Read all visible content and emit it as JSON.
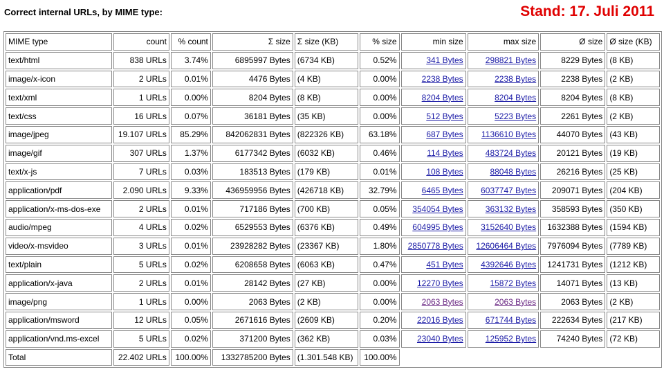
{
  "header": {
    "title": "Correct internal URLs, by MIME type:",
    "stand": "Stand: 17. Juli 2011"
  },
  "table": {
    "header": [
      "MIME type",
      "count",
      "% count",
      "Σ size",
      "Σ size (KB)",
      "% size",
      "min size",
      "max size",
      "Ø size",
      "Ø size (KB)"
    ],
    "rows": [
      [
        "text/html",
        "838 URLs",
        "3.74%",
        "6895997 Bytes",
        "(6734 KB)",
        "0.52%",
        "341 Bytes",
        "298821 Bytes",
        "8229 Bytes",
        "(8 KB)"
      ],
      [
        "image/x-icon",
        "2 URLs",
        "0.01%",
        "4476 Bytes",
        "(4 KB)",
        "0.00%",
        "2238 Bytes",
        "2238 Bytes",
        "2238 Bytes",
        "(2 KB)"
      ],
      [
        "text/xml",
        "1 URLs",
        "0.00%",
        "8204 Bytes",
        "(8 KB)",
        "0.00%",
        "8204 Bytes",
        "8204 Bytes",
        "8204 Bytes",
        "(8 KB)"
      ],
      [
        "text/css",
        "16 URLs",
        "0.07%",
        "36181 Bytes",
        "(35 KB)",
        "0.00%",
        "512 Bytes",
        "5223 Bytes",
        "2261 Bytes",
        "(2 KB)"
      ],
      [
        "image/jpeg",
        "19.107 URLs",
        "85.29%",
        "842062831 Bytes",
        "(822326 KB)",
        "63.18%",
        "687 Bytes",
        "1136610 Bytes",
        "44070 Bytes",
        "(43 KB)"
      ],
      [
        "image/gif",
        "307 URLs",
        "1.37%",
        "6177342 Bytes",
        "(6032 KB)",
        "0.46%",
        "114 Bytes",
        "483724 Bytes",
        "20121 Bytes",
        "(19 KB)"
      ],
      [
        "text/x-js",
        "7 URLs",
        "0.03%",
        "183513 Bytes",
        "(179 KB)",
        "0.01%",
        "108 Bytes",
        "88048 Bytes",
        "26216 Bytes",
        "(25 KB)"
      ],
      [
        "application/pdf",
        "2.090 URLs",
        "9.33%",
        "436959956 Bytes",
        "(426718 KB)",
        "32.79%",
        "6465 Bytes",
        "6037747 Bytes",
        "209071 Bytes",
        "(204 KB)"
      ],
      [
        "application/x-ms-dos-exe",
        "2 URLs",
        "0.01%",
        "717186 Bytes",
        "(700 KB)",
        "0.05%",
        "354054 Bytes",
        "363132 Bytes",
        "358593 Bytes",
        "(350 KB)"
      ],
      [
        "audio/mpeg",
        "4 URLs",
        "0.02%",
        "6529553 Bytes",
        "(6376 KB)",
        "0.49%",
        "604995 Bytes",
        "3152640 Bytes",
        "1632388 Bytes",
        "(1594 KB)"
      ],
      [
        "video/x-msvideo",
        "3 URLs",
        "0.01%",
        "23928282 Bytes",
        "(23367 KB)",
        "1.80%",
        "2850778 Bytes",
        "12606464 Bytes",
        "7976094 Bytes",
        "(7789 KB)"
      ],
      [
        "text/plain",
        "5 URLs",
        "0.02%",
        "6208658 Bytes",
        "(6063 KB)",
        "0.47%",
        "451 Bytes",
        "4392646 Bytes",
        "1241731 Bytes",
        "(1212 KB)"
      ],
      [
        "application/x-java",
        "2 URLs",
        "0.01%",
        "28142 Bytes",
        "(27 KB)",
        "0.00%",
        "12270 Bytes",
        "15872 Bytes",
        "14071 Bytes",
        "(13 KB)"
      ],
      [
        "image/png",
        "1 URLs",
        "0.00%",
        "2063 Bytes",
        "(2 KB)",
        "0.00%",
        "2063 Bytes",
        "2063 Bytes",
        "2063 Bytes",
        "(2 KB)"
      ],
      [
        "application/msword",
        "12 URLs",
        "0.05%",
        "2671616 Bytes",
        "(2609 KB)",
        "0.20%",
        "22016 Bytes",
        "671744 Bytes",
        "222634 Bytes",
        "(217 KB)"
      ],
      [
        "application/vnd.ms-excel",
        "5 URLs",
        "0.02%",
        "371200 Bytes",
        "(362 KB)",
        "0.03%",
        "23040 Bytes",
        "125952 Bytes",
        "74240 Bytes",
        "(72 KB)"
      ]
    ],
    "total": [
      "Total",
      "22.402 URLs",
      "100.00%",
      "1332785200 Bytes",
      "(1.301.548 KB)",
      "100.00%"
    ]
  }
}
